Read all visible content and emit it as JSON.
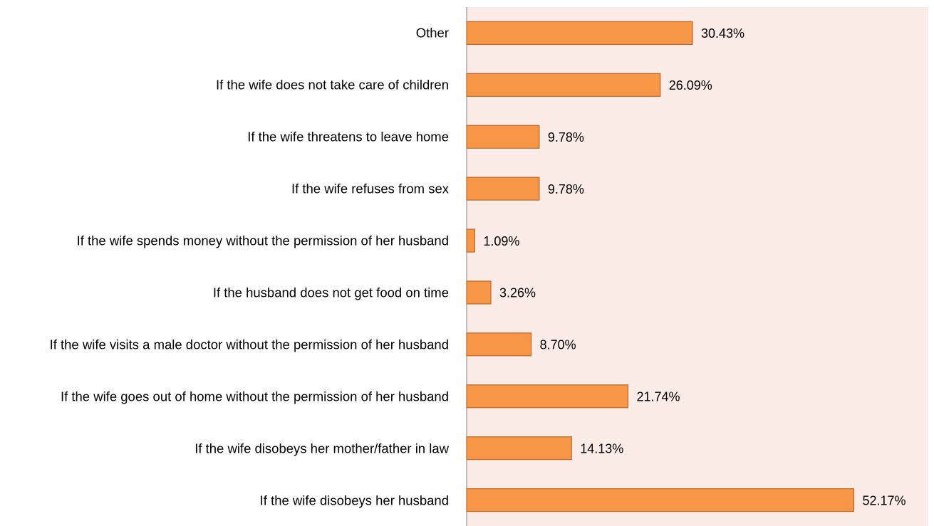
{
  "chart_data": {
    "type": "bar",
    "orientation": "horizontal",
    "categories": [
      "Other",
      "If the wife does not take care of children",
      "If the wife threatens to leave home",
      "If the wife refuses from sex",
      "If the wife spends money without the permission of her husband",
      "If the husband does not get food on time",
      "If the wife visits a male doctor without the permission of her husband",
      "If the wife goes out of home without the permission of her husband",
      "If the wife disobeys her mother/father in law",
      "If the wife disobeys her husband"
    ],
    "values": [
      30.43,
      26.09,
      9.78,
      9.78,
      1.09,
      3.26,
      8.7,
      21.74,
      14.13,
      52.17
    ],
    "value_labels": [
      "30.43%",
      "26.09%",
      "9.78%",
      "9.78%",
      "1.09%",
      "3.26%",
      "8.70%",
      "21.74%",
      "14.13%",
      "52.17%"
    ],
    "color": "#f79646",
    "xlim": [
      0,
      60
    ]
  }
}
